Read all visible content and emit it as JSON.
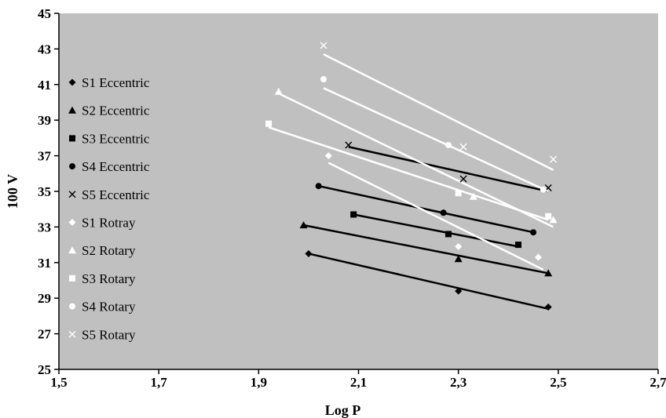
{
  "chart_data": {
    "type": "scatter",
    "xlabel": "Log P",
    "ylabel": "100 V",
    "xlim": [
      1.5,
      2.7
    ],
    "ylim": [
      25,
      45
    ],
    "x_ticks": [
      "1,5",
      "1,7",
      "1,9",
      "2,1",
      "2,3",
      "2,5",
      "2,7"
    ],
    "y_ticks": [
      "25",
      "27",
      "29",
      "31",
      "33",
      "35",
      "37",
      "39",
      "41",
      "43",
      "45"
    ],
    "grid": false,
    "legend_position": "left",
    "plot_background": "#c0c0c0",
    "series": [
      {
        "name": "S1 Eccentric",
        "marker": "diamond",
        "color": "#000000",
        "x": [
          2.0,
          2.3,
          2.48
        ],
        "y": [
          31.5,
          29.4,
          28.5
        ],
        "trend": [
          [
            2.0,
            31.5
          ],
          [
            2.48,
            28.4
          ]
        ]
      },
      {
        "name": "S2 Eccentric",
        "marker": "triangle",
        "color": "#000000",
        "x": [
          1.99,
          2.3,
          2.48
        ],
        "y": [
          33.1,
          31.2,
          30.4
        ],
        "trend": [
          [
            1.99,
            33.1
          ],
          [
            2.48,
            30.4
          ]
        ]
      },
      {
        "name": "S3 Eccentric",
        "marker": "square",
        "color": "#000000",
        "x": [
          2.09,
          2.28,
          2.42
        ],
        "y": [
          33.7,
          32.6,
          32.0
        ],
        "trend": [
          [
            2.09,
            33.7
          ],
          [
            2.42,
            31.9
          ]
        ]
      },
      {
        "name": "S4 Eccentric",
        "marker": "circle",
        "color": "#000000",
        "x": [
          2.02,
          2.27,
          2.45
        ],
        "y": [
          35.3,
          33.8,
          32.7
        ],
        "trend": [
          [
            2.02,
            35.3
          ],
          [
            2.45,
            32.7
          ]
        ]
      },
      {
        "name": "S5 Eccentric",
        "marker": "x",
        "color": "#000000",
        "x": [
          2.08,
          2.31,
          2.48
        ],
        "y": [
          37.6,
          35.7,
          35.2
        ],
        "trend": [
          [
            2.08,
            37.5
          ],
          [
            2.48,
            35.0
          ]
        ]
      },
      {
        "name": "S1 Rotray",
        "marker": "diamond",
        "color": "#ffffff",
        "x": [
          2.04,
          2.3,
          2.46
        ],
        "y": [
          37.0,
          31.9,
          31.3
        ],
        "trend": [
          [
            2.04,
            36.6
          ],
          [
            2.47,
            30.6
          ]
        ]
      },
      {
        "name": "S2 Rotary",
        "marker": "triangle",
        "color": "#ffffff",
        "x": [
          1.94,
          2.33,
          2.49
        ],
        "y": [
          40.6,
          34.7,
          33.4
        ],
        "trend": [
          [
            1.94,
            40.5
          ],
          [
            2.49,
            33.0
          ]
        ]
      },
      {
        "name": "S3 Rotary",
        "marker": "square",
        "color": "#ffffff",
        "x": [
          1.92,
          2.3,
          2.48
        ],
        "y": [
          38.8,
          34.9,
          33.6
        ],
        "trend": [
          [
            1.92,
            38.6
          ],
          [
            2.48,
            33.4
          ]
        ]
      },
      {
        "name": "S4 Rotary",
        "marker": "circle",
        "color": "#ffffff",
        "x": [
          2.03,
          2.28,
          2.47
        ],
        "y": [
          41.3,
          37.6,
          35.1
        ],
        "trend": [
          [
            2.03,
            40.8
          ],
          [
            2.48,
            35.0
          ]
        ]
      },
      {
        "name": "S5 Rotary",
        "marker": "x",
        "color": "#e0e0e0",
        "x": [
          2.03,
          2.31,
          2.49
        ],
        "y": [
          43.2,
          37.5,
          36.8
        ],
        "trend": [
          [
            2.03,
            42.7
          ],
          [
            2.49,
            36.2
          ]
        ]
      }
    ]
  }
}
